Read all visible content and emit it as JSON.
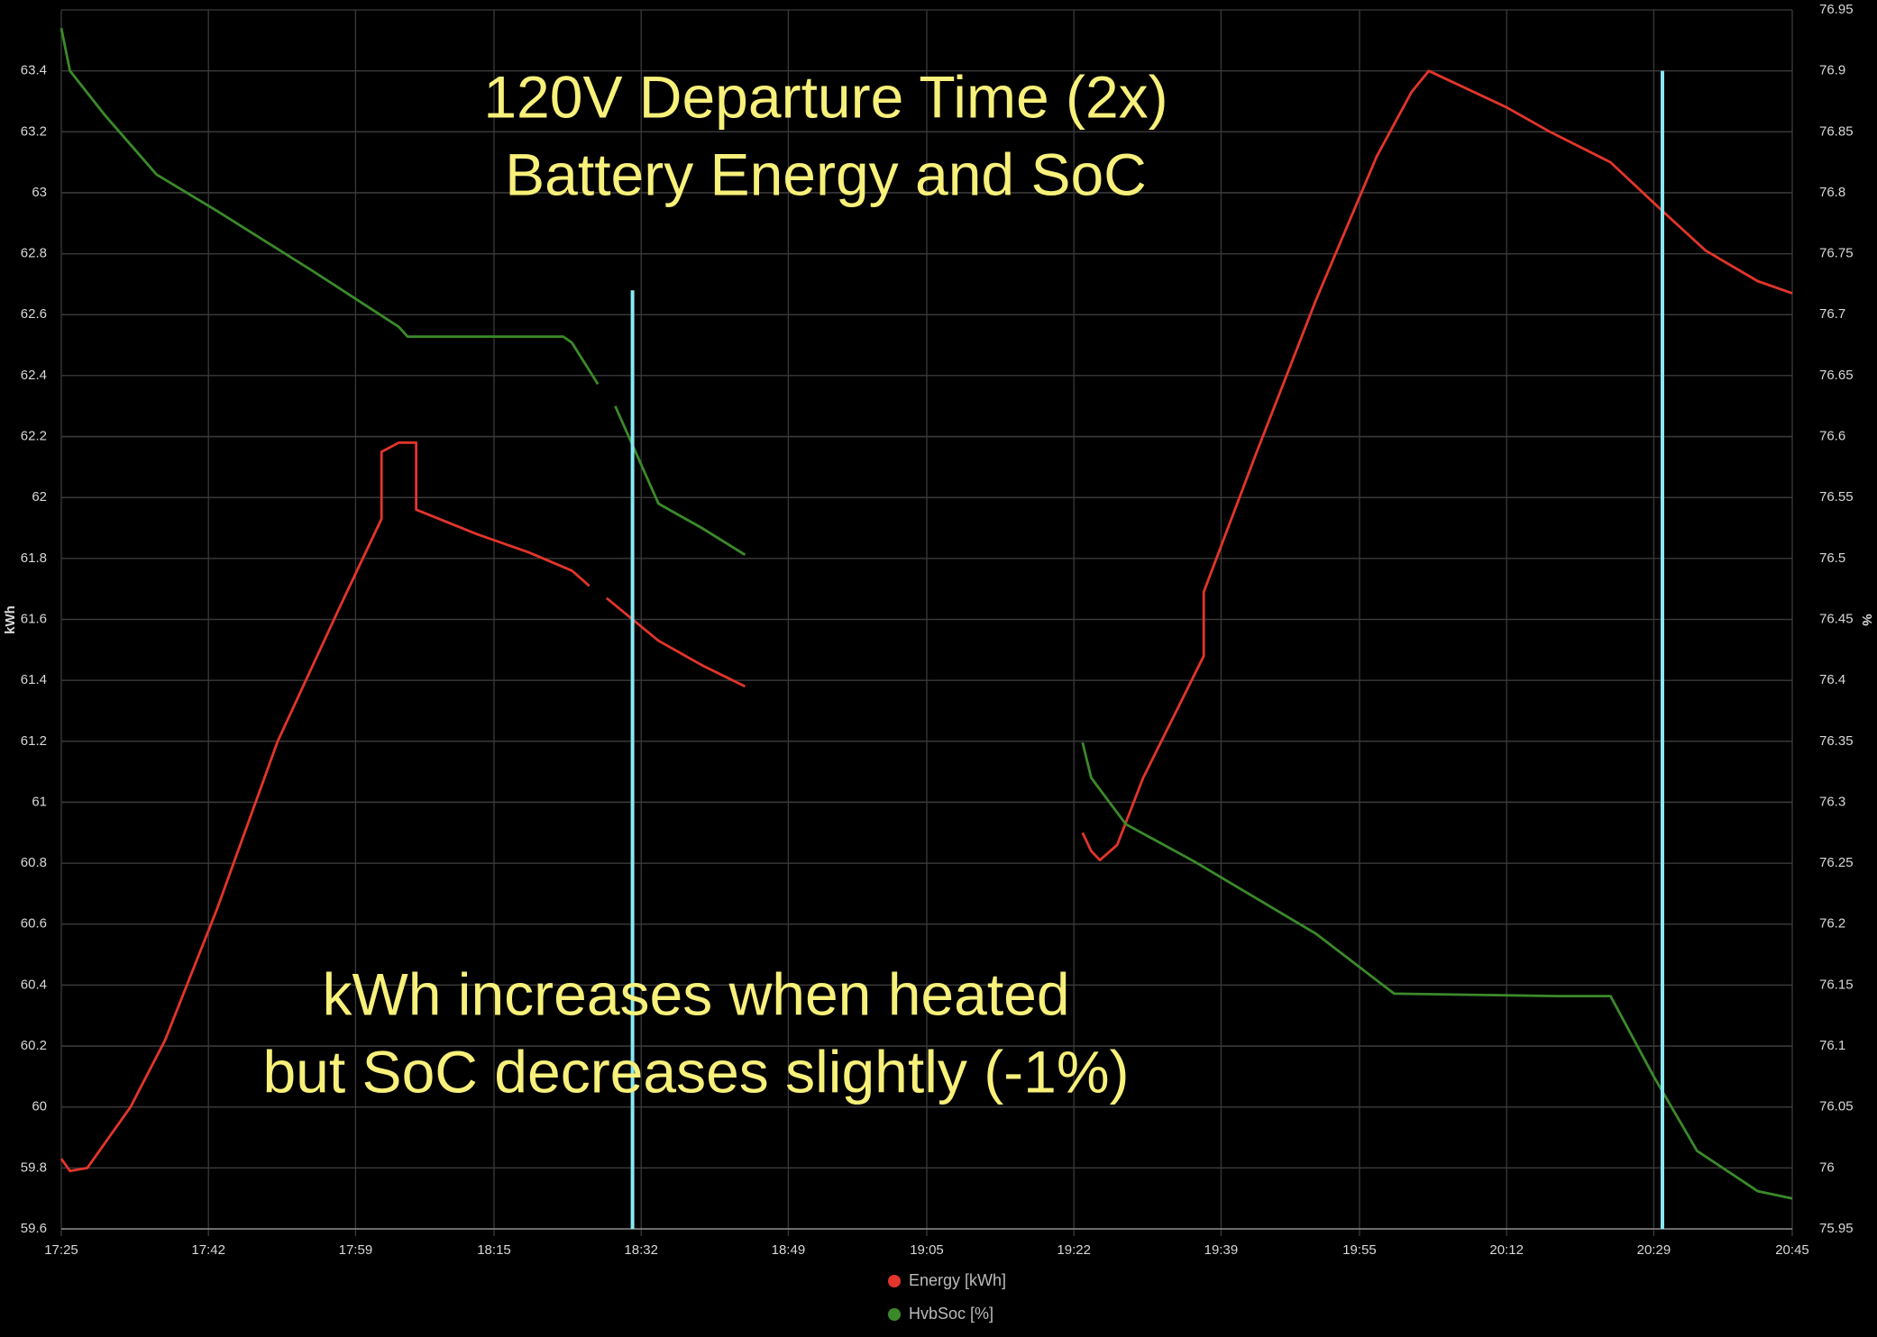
{
  "chart_data": {
    "type": "line",
    "title": [
      "120V Departure Time (2x)",
      "Battery Energy and SoC"
    ],
    "annotation": [
      "kWh increases when heated",
      "but SoC decreases slightly (-1%)"
    ],
    "text_color": "#f7f07a",
    "ylabel": "kWh",
    "y2label": "%",
    "xlim": [
      "17:25",
      "20:45"
    ],
    "xticks": [
      "17:25",
      "17:42",
      "17:59",
      "18:15",
      "18:32",
      "18:49",
      "19:05",
      "19:22",
      "19:39",
      "19:55",
      "20:12",
      "20:29",
      "20:45"
    ],
    "ylim": [
      59.6,
      63.6
    ],
    "yticks": [
      59.6,
      59.8,
      60,
      60.2,
      60.4,
      60.6,
      60.8,
      61,
      61.2,
      61.4,
      61.6,
      61.8,
      62,
      62.2,
      62.4,
      62.6,
      62.8,
      63,
      63.2,
      63.4
    ],
    "y2lim": [
      75.95,
      76.95
    ],
    "y2ticks": [
      75.95,
      76,
      76.05,
      76.1,
      76.15,
      76.2,
      76.25,
      76.3,
      76.35,
      76.4,
      76.45,
      76.5,
      76.55,
      76.6,
      76.65,
      76.7,
      76.75,
      76.8,
      76.85,
      76.9,
      76.95
    ],
    "grid": true,
    "legend": "bottom",
    "series": [
      {
        "name": "Energy [kWh]",
        "color": "#e2352b",
        "x": [
          "17:25",
          "17:26",
          "17:28",
          "17:30",
          "17:33",
          "17:37",
          "17:43",
          "17:50",
          "17:57",
          "18:02",
          "18:02",
          "18:04",
          "18:06",
          "18:06",
          "18:13",
          "18:19",
          "18:24",
          "18:26",
          "18:27",
          "18:28",
          "18:34",
          "18:39",
          "18:44",
          "19:00",
          "19:23",
          "19:24",
          "19:25",
          "19:27",
          "19:30",
          "19:37",
          "19:37",
          "19:43",
          "19:50",
          "19:57",
          "20:01",
          "20:03",
          "20:06",
          "20:12",
          "20:17",
          "20:24",
          "20:30",
          "20:35",
          "20:41",
          "20:45"
        ],
        "values": [
          59.83,
          59.79,
          59.8,
          59.88,
          60.0,
          60.22,
          60.65,
          61.2,
          61.63,
          61.93,
          62.15,
          62.18,
          62.18,
          61.96,
          61.88,
          61.82,
          61.76,
          61.71,
          null,
          61.67,
          61.53,
          61.45,
          61.38,
          null,
          60.9,
          60.84,
          60.81,
          60.86,
          61.08,
          61.48,
          61.69,
          62.14,
          62.65,
          63.12,
          63.33,
          63.4,
          63.36,
          63.28,
          63.2,
          63.1,
          62.94,
          62.81,
          62.71,
          62.67
        ]
      },
      {
        "name": "HvbSoc [%]",
        "color": "#3b8a2a",
        "axis": "y2",
        "x": [
          "17:25",
          "17:26",
          "17:30",
          "17:36",
          "17:43",
          "17:54",
          "18:04",
          "18:05",
          "18:23",
          "18:24",
          "18:27",
          "18:28",
          "18:29",
          "18:34",
          "18:39",
          "18:44",
          "19:00",
          "19:23",
          "19:24",
          "19:28",
          "19:36",
          "19:50",
          "19:59",
          "20:18",
          "20:24",
          "20:29",
          "20:34",
          "20:41",
          "20:45"
        ],
        "values": [
          76.935,
          76.9,
          76.864,
          76.815,
          76.785,
          76.736,
          76.69,
          76.682,
          76.682,
          76.677,
          76.643,
          null,
          76.625,
          76.545,
          76.525,
          76.503,
          null,
          76.349,
          76.32,
          76.282,
          76.251,
          76.192,
          76.143,
          76.141,
          76.141,
          76.075,
          76.014,
          75.981,
          75.975
        ]
      }
    ],
    "vline_color": "#86e8f2",
    "vlines": [
      {
        "x": "18:31",
        "y": 62.68
      },
      {
        "x": "20:30",
        "y": 63.4
      }
    ]
  }
}
